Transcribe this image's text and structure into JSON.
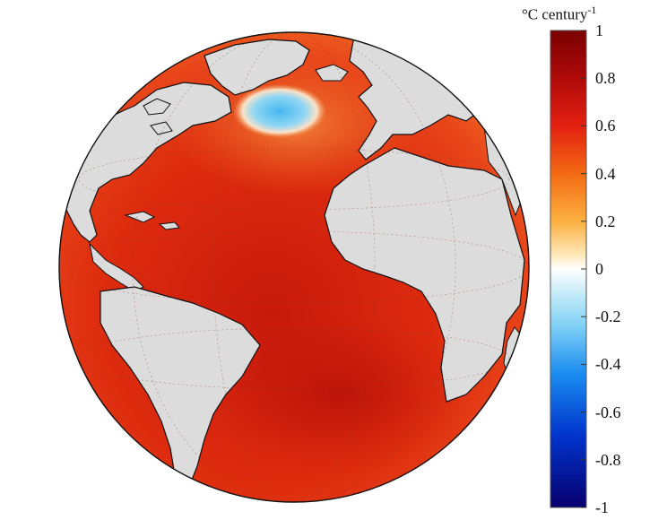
{
  "colorbar": {
    "unit_text": "°C century",
    "unit_exponent": "-1",
    "ticks": [
      "1",
      "0.8",
      "0.6",
      "0.4",
      "0.2",
      "0",
      "-0.2",
      "-0.4",
      "-0.6",
      "-0.8",
      "-1"
    ],
    "range": [
      -1,
      1
    ],
    "colors": [
      "#08006e",
      "#0033cc",
      "#1a8cf0",
      "#7fd0f5",
      "#ffffff",
      "#ffe0a0",
      "#fbb040",
      "#f46a14",
      "#e32010",
      "#b00a0a",
      "#7a0000"
    ]
  },
  "map": {
    "projection": "orthographic",
    "region": "Atlantic Ocean",
    "land_color": "#dcdcdc",
    "ocean_color_main": "#d8260c",
    "cold_anomaly_color": "#5cc8f0"
  }
}
